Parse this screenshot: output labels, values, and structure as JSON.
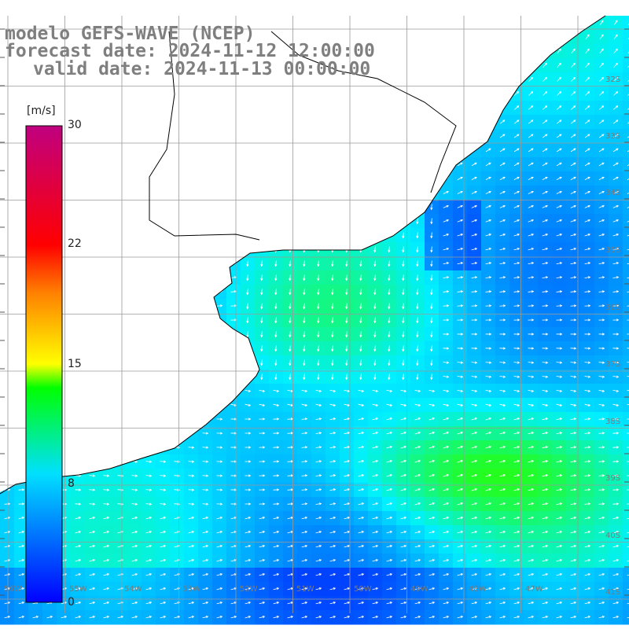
{
  "header": {
    "line1": "modelo GEFS-WAVE (NCEP)",
    "line2": "forecast date: 2024-11-12 12:00:00",
    "line3": "valid date: 2024-11-13 00:00:00"
  },
  "colorbar": {
    "unit": "[m/s]",
    "ticks": [
      "30",
      "22",
      "15",
      "8",
      "0"
    ],
    "tick_values": [
      30,
      22,
      15,
      8,
      0
    ],
    "min": 0,
    "max": 30,
    "colors": [
      "#0000ff",
      "#00c8ff",
      "#00ff00",
      "#ffff00",
      "#ff8000",
      "#ff0000",
      "#c00080"
    ]
  },
  "map": {
    "variable": "wind speed",
    "lat_labels": [
      "32S",
      "33S",
      "34S",
      "35S",
      "36S",
      "37S",
      "38S",
      "39S",
      "40S",
      "41S"
    ],
    "lon_labels": [
      "56W",
      "55W",
      "54W",
      "53W",
      "52W",
      "51W",
      "50W",
      "49W",
      "48W",
      "47W"
    ],
    "land_color": "#ffffff",
    "grid_color": "#9a9a9a",
    "coast_color": "#000000"
  }
}
